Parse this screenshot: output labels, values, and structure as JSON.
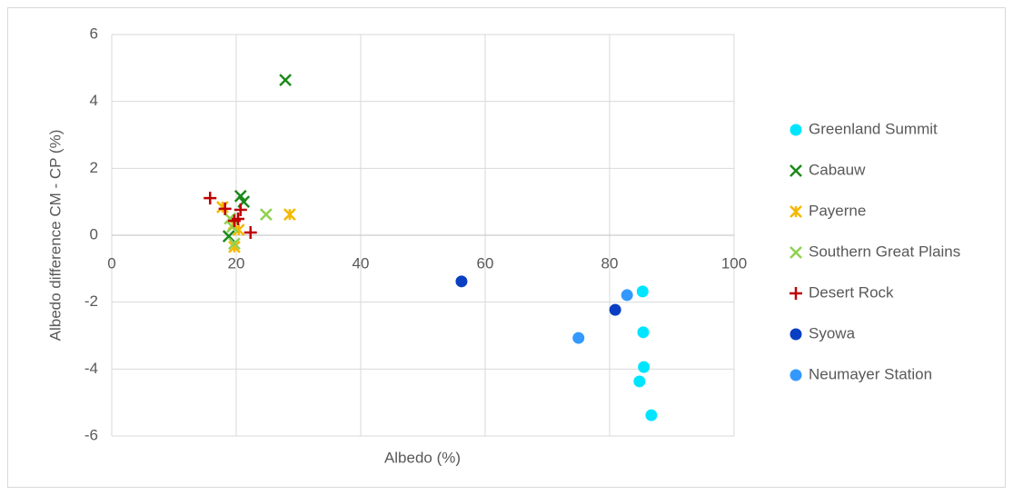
{
  "chart_data": {
    "type": "scatter",
    "x_label": "Albedo (%)",
    "y_label": "Albedo difference CM - CP (%)",
    "xlim": [
      0,
      100
    ],
    "xticks": [
      0,
      20,
      40,
      60,
      80,
      100
    ],
    "ylim": [
      -6,
      6
    ],
    "yticks": [
      -6,
      -4,
      -2,
      0,
      2,
      4,
      6
    ],
    "grid": true,
    "legend": "right",
    "series": [
      {
        "name": "Greenland Summit",
        "color": "#00e5ff",
        "marker": "circle",
        "x": [
          85.3,
          85.4,
          85.5,
          84.8,
          86.7
        ],
        "values": [
          -1.68,
          -2.9,
          -3.94,
          -4.37,
          -5.38
        ]
      },
      {
        "name": "Cabauw",
        "color": "#1a8a1a",
        "marker": "x",
        "x": [
          27.9,
          20.7,
          21.2,
          18.8
        ],
        "values": [
          4.64,
          1.17,
          1.0,
          -0.03
        ]
      },
      {
        "name": "Payerne",
        "color": "#f5b800",
        "marker": "star",
        "x": [
          28.6,
          17.8,
          19.6,
          19.7,
          20.4
        ],
        "values": [
          0.62,
          0.84,
          0.33,
          -0.35,
          0.16
        ]
      },
      {
        "name": "Southern Great Plains",
        "color": "#8fd14f",
        "marker": "x",
        "x": [
          24.8,
          19.0,
          19.7,
          19.4
        ],
        "values": [
          0.62,
          0.5,
          -0.25,
          0.25
        ]
      },
      {
        "name": "Desert Rock",
        "color": "#c00000",
        "marker": "plus",
        "x": [
          15.8,
          18.2,
          20.7,
          20.3,
          19.7,
          22.3
        ],
        "values": [
          1.11,
          0.79,
          0.76,
          0.49,
          0.43,
          0.08
        ]
      },
      {
        "name": "Syowa",
        "color": "#0a3fc4",
        "marker": "circle",
        "x": [
          56.2,
          80.9
        ],
        "values": [
          -1.38,
          -2.23
        ]
      },
      {
        "name": "Neumayer Station",
        "color": "#3399ff",
        "marker": "circle",
        "x": [
          82.8,
          75.0
        ],
        "values": [
          -1.79,
          -3.07
        ]
      }
    ]
  }
}
